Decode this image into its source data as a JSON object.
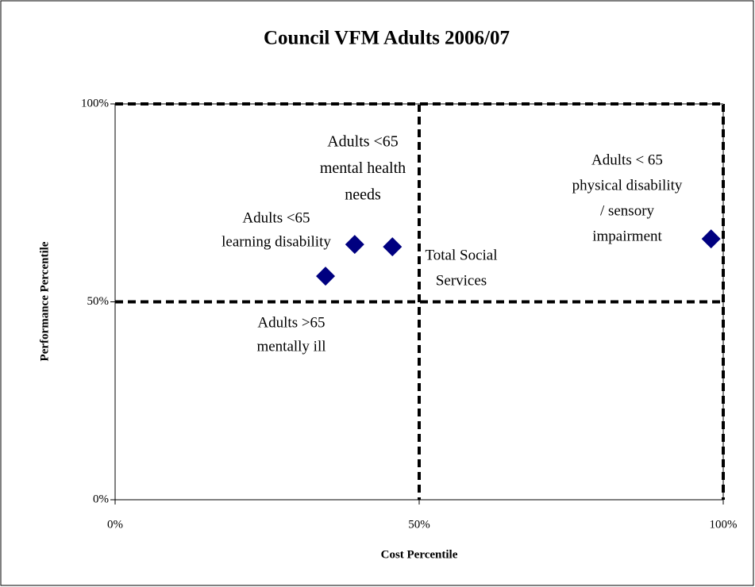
{
  "chart_data": {
    "type": "scatter",
    "title": "Council VFM Adults 2006/07",
    "xlabel": "Cost Percentile",
    "ylabel": "Performance Percentile",
    "xlim": [
      0,
      100
    ],
    "ylim": [
      0,
      100
    ],
    "xticks": [
      {
        "value": 0,
        "label": "0%"
      },
      {
        "value": 50,
        "label": "50%"
      },
      {
        "value": 100,
        "label": "100%"
      }
    ],
    "yticks": [
      {
        "value": 0,
        "label": "0%"
      },
      {
        "value": 50,
        "label": "50%"
      },
      {
        "value": 100,
        "label": "100%"
      }
    ],
    "grid": true,
    "series": [
      {
        "color": "#000080",
        "x": [
          34.6,
          39.4,
          45.6,
          98.0
        ],
        "values": [
          56.5,
          64.5,
          63.9,
          65.9
        ]
      }
    ],
    "annotations": [
      {
        "lines": [
          "Adults <65",
          "learning disability"
        ]
      },
      {
        "lines": [
          "Adults <65",
          "mental health",
          "needs"
        ]
      },
      {
        "lines": [
          "Total Social",
          "Services"
        ]
      },
      {
        "lines": [
          "Adults < 65",
          "physical disability",
          "/ sensory",
          "impairment"
        ]
      },
      {
        "lines": [
          "Adults >65",
          "mentally ill"
        ]
      }
    ]
  }
}
